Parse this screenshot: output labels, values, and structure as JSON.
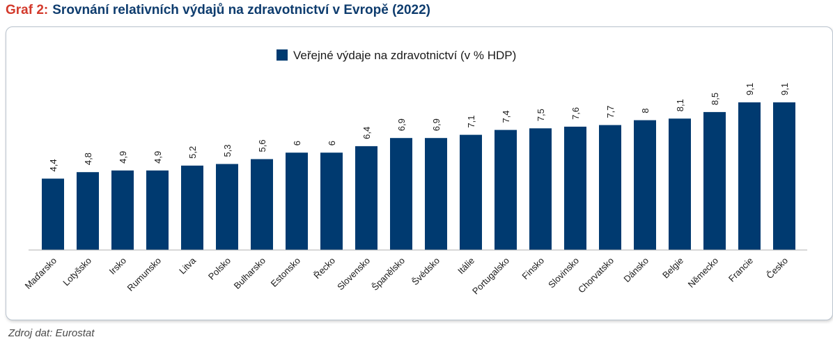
{
  "header": {
    "prefix": "Graf 2:",
    "title": "Srovnání relativních výdajů na zdravotnictví v Evropě (2022)"
  },
  "footer": {
    "source": "Zdroj dat: Eurostat"
  },
  "colors": {
    "bar": "#003a70",
    "prefix": "#d33a2c",
    "title": "#0e3c6e",
    "axis": "#b0b0b0"
  },
  "chart_data": {
    "type": "bar",
    "title": "Srovnání relativních výdajů na zdravotnictví v Evropě (2022)",
    "categories": [
      "Maďarsko",
      "Lotyšsko",
      "Irsko",
      "Rumunsko",
      "Litva",
      "Polsko",
      "Bulharsko",
      "Estonsko",
      "Řecko",
      "Slovensko",
      "Španělsko",
      "Švédsko",
      "Itálie",
      "Portugalsko",
      "Finsko",
      "Slovinsko",
      "Chorvatsko",
      "Dánsko",
      "Belgie",
      "Německo",
      "Francie",
      "Česko"
    ],
    "series": [
      {
        "name": "Veřejné výdaje na zdravotnictví (v % HDP)",
        "values": [
          4.4,
          4.8,
          4.9,
          4.9,
          5.2,
          5.3,
          5.6,
          6,
          6,
          6.4,
          6.9,
          6.9,
          7.1,
          7.4,
          7.5,
          7.6,
          7.7,
          8,
          8.1,
          8.5,
          9.1,
          9.1
        ],
        "labels": [
          "4,4",
          "4,8",
          "4,9",
          "4,9",
          "5,2",
          "5,3",
          "5,6",
          "6",
          "6",
          "6,4",
          "6,9",
          "6,9",
          "7,1",
          "7,4",
          "7,5",
          "7,6",
          "7,7",
          "8",
          "8,1",
          "8,5",
          "9,1",
          "9,1"
        ]
      }
    ],
    "ylim": [
      0,
      10
    ],
    "xlabel": "",
    "ylabel": "",
    "grid": false,
    "legend_position": "top-center",
    "data_labels": true
  }
}
